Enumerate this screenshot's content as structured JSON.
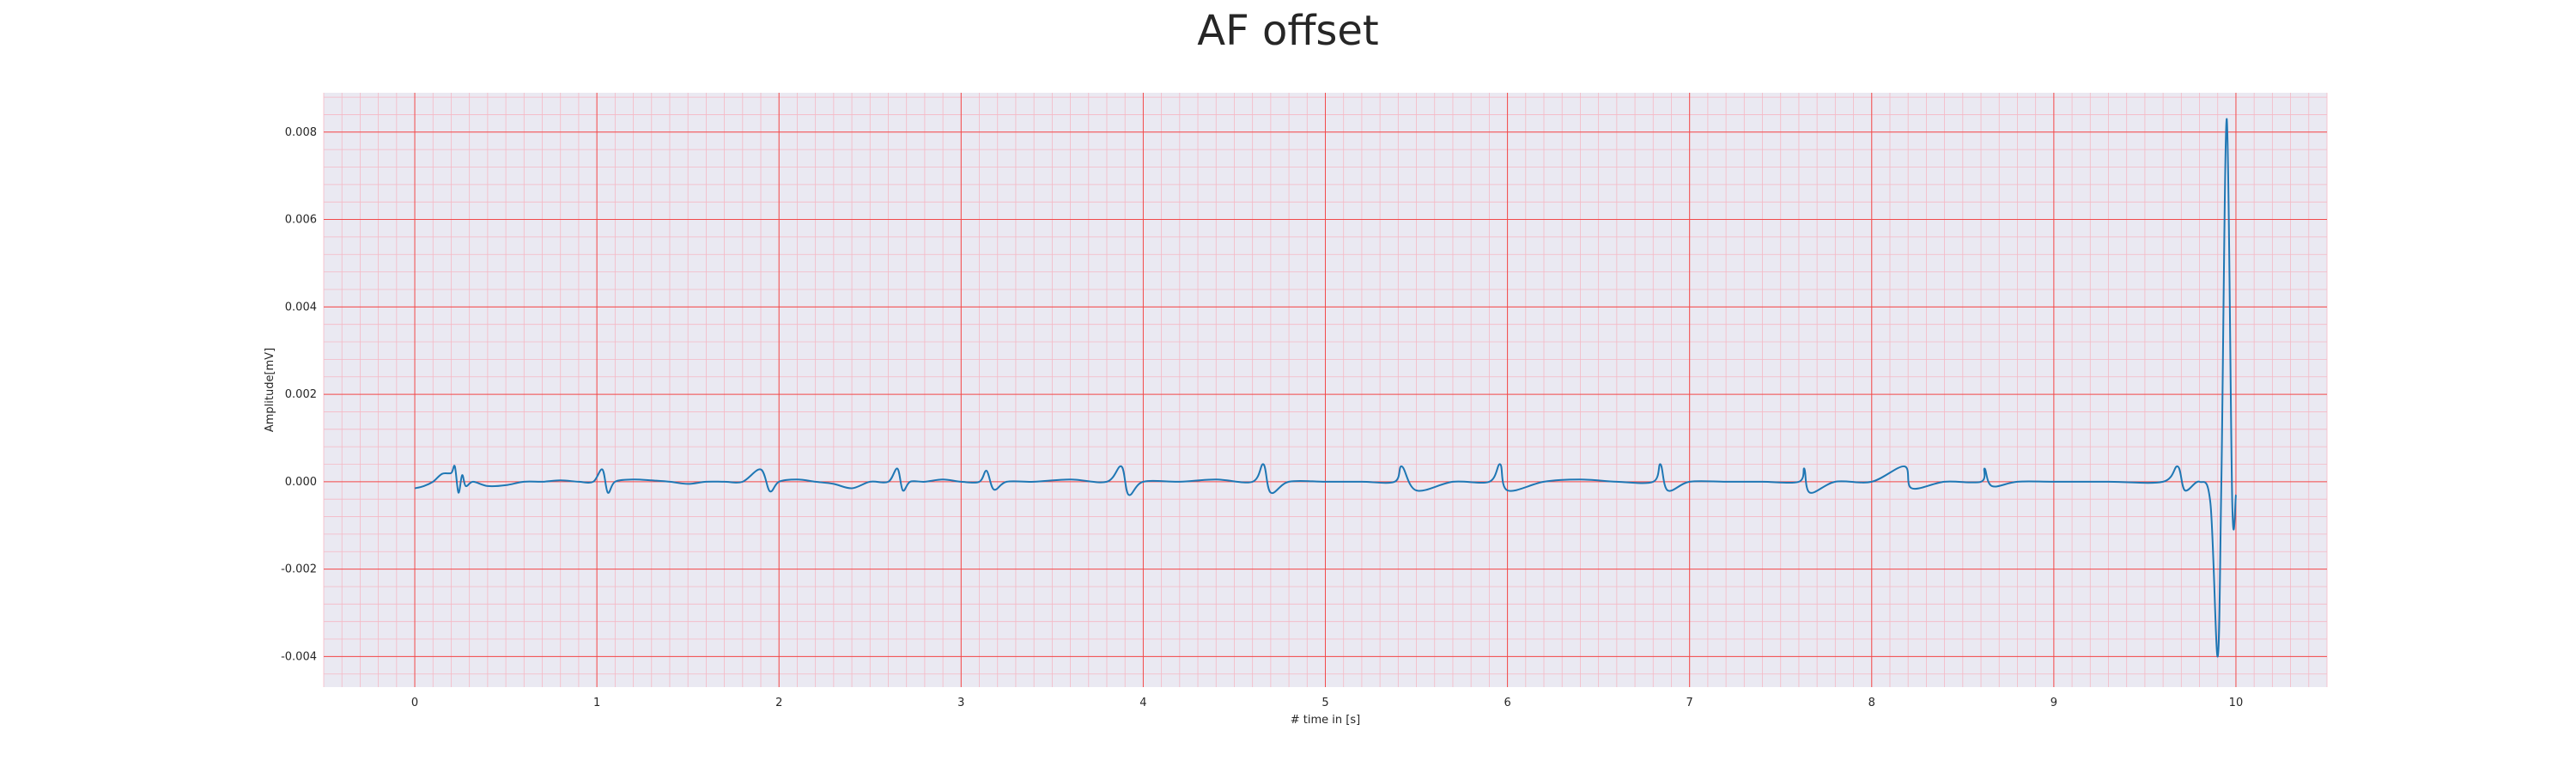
{
  "chart_data": {
    "type": "line",
    "title": "AF offset",
    "xlabel": "# time in [s]",
    "ylabel": "Amplitude[mV]",
    "xlim": [
      -0.5,
      10.5
    ],
    "ylim": [
      -0.0047,
      0.0089
    ],
    "xticks": [
      "0",
      "1",
      "2",
      "3",
      "4",
      "5",
      "6",
      "7",
      "8",
      "9",
      "10"
    ],
    "yticks": [
      "0.008",
      "0.006",
      "0.004",
      "0.002",
      "0.000",
      "-0.002",
      "-0.004"
    ],
    "grid": true,
    "colors": {
      "background": "#eae9f2",
      "major_grid": "#f24a4a",
      "minor_grid": "#f5b8c4",
      "line": "#1f77b4"
    },
    "series": [
      {
        "x": [
          0,
          0.05,
          0.1,
          0.15,
          0.2,
          0.22,
          0.24,
          0.26,
          0.28,
          0.32,
          0.4,
          0.5,
          0.6,
          0.7,
          0.8,
          0.9,
          0.98,
          1.03,
          1.06,
          1.1,
          1.2,
          1.3,
          1.4,
          1.5,
          1.6,
          1.7,
          1.8,
          1.9,
          1.95,
          2.0,
          2.1,
          2.2,
          2.3,
          2.4,
          2.5,
          2.6,
          2.65,
          2.68,
          2.72,
          2.8,
          2.9,
          3.0,
          3.1,
          3.14,
          3.18,
          3.25,
          3.4,
          3.6,
          3.8,
          3.88,
          3.92,
          4.0,
          4.2,
          4.4,
          4.6,
          4.66,
          4.7,
          4.8,
          5.0,
          5.2,
          5.38,
          5.42,
          5.5,
          5.7,
          5.9,
          5.96,
          6.0,
          6.2,
          6.4,
          6.6,
          6.8,
          6.84,
          6.88,
          7.0,
          7.2,
          7.4,
          7.6,
          7.63,
          7.66,
          7.8,
          8.0,
          8.18,
          8.22,
          8.4,
          8.6,
          8.62,
          8.66,
          8.8,
          9.0,
          9.3,
          9.6,
          9.68,
          9.72,
          9.8,
          9.86,
          9.9,
          9.92,
          9.95,
          9.98,
          10.0
        ],
        "values": [
          -0.00015,
          -0.0001,
          0.0,
          0.00018,
          0.0002,
          0.00035,
          -0.00025,
          0.00015,
          -0.0001,
          0.0,
          -0.0001,
          -8e-05,
          0.0,
          0.0,
          3e-05,
          0.0,
          0.0,
          0.00028,
          -0.00025,
          0.0,
          5e-05,
          3e-05,
          0.0,
          -5e-05,
          0.0,
          0.0,
          0.0,
          0.00028,
          -0.00022,
          0.0,
          5e-05,
          0.0,
          -5e-05,
          -0.00015,
          0.0,
          0.0,
          0.0003,
          -0.0002,
          0.0,
          0.0,
          5e-05,
          0.0,
          0.0,
          0.00025,
          -0.00018,
          0.0,
          0.0,
          5e-05,
          0.0,
          0.00035,
          -0.0003,
          0.0,
          0.0,
          5e-05,
          0.0,
          0.0004,
          -0.00025,
          0.0,
          0.0,
          0.0,
          0.0,
          0.00035,
          -0.0002,
          0.0,
          0.0,
          0.0004,
          -0.0002,
          0.0,
          5e-05,
          0.0,
          0.0,
          0.0004,
          -0.0002,
          0.0,
          0.0,
          0.0,
          0.0,
          0.0003,
          -0.00025,
          0.0,
          0.0,
          0.00035,
          -0.00015,
          0.0,
          0.0,
          0.0003,
          -0.0001,
          0.0,
          0.0,
          0.0,
          0.0,
          0.00035,
          -0.0002,
          0.0,
          -0.0005,
          -0.004,
          0.0,
          0.0083,
          -0.0005,
          -0.0003
        ]
      }
    ]
  }
}
